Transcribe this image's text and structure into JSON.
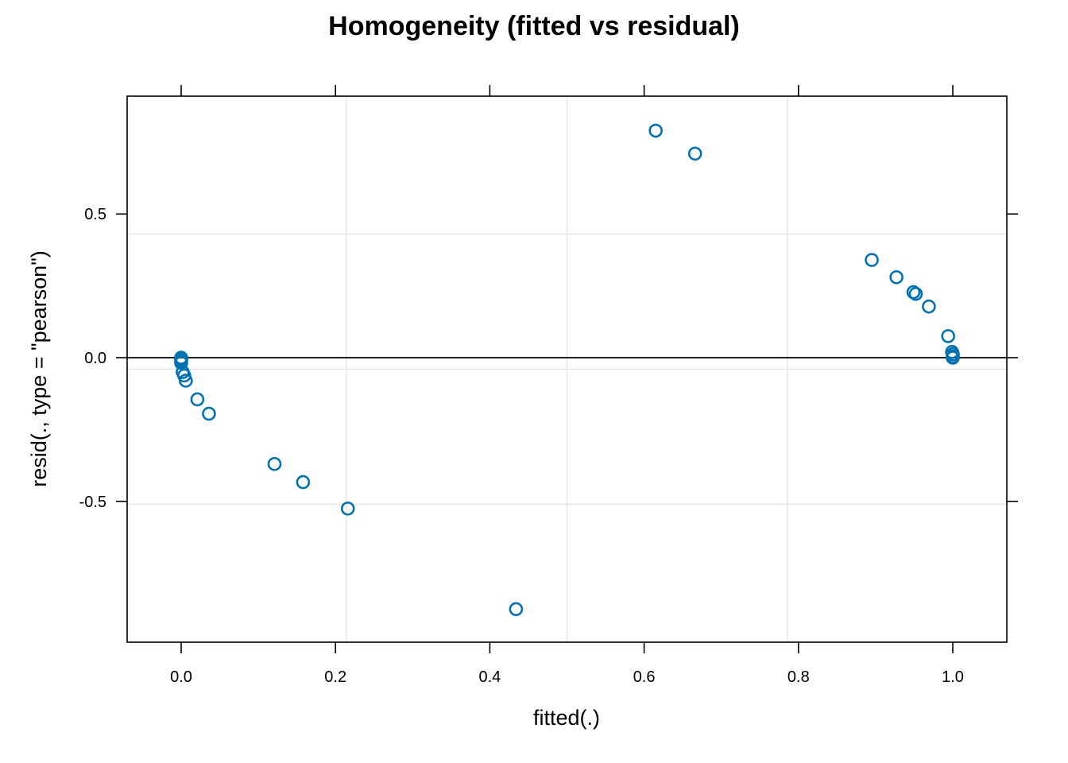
{
  "chart_data": {
    "type": "scatter",
    "title": "Homogeneity (fitted vs residual)",
    "xlabel": "fitted(.)",
    "ylabel": "resid(., type = \"pearson\")",
    "xlim": [
      -0.07,
      1.07
    ],
    "ylim": [
      -0.99,
      0.91
    ],
    "x_ticks": [
      {
        "value": 0.0,
        "label": "0.0"
      },
      {
        "value": 0.2,
        "label": "0.2"
      },
      {
        "value": 0.4,
        "label": "0.4"
      },
      {
        "value": 0.6,
        "label": "0.6"
      },
      {
        "value": 0.8,
        "label": "0.8"
      },
      {
        "value": 1.0,
        "label": "1.0"
      }
    ],
    "y_ticks": [
      {
        "value": 0.5,
        "label": "0.5"
      },
      {
        "value": 0.0,
        "label": "0.0"
      },
      {
        "value": -0.5,
        "label": "-0.5"
      }
    ],
    "grid": {
      "show": true,
      "x": [
        0.214,
        0.5,
        0.786
      ],
      "y": [
        0.43,
        -0.04,
        -0.51
      ],
      "color": "#e6e6e6"
    },
    "reference_line": {
      "y": 0.0,
      "color": "#000000"
    },
    "point_color": "#0072b2",
    "points": [
      {
        "x": 0.0,
        "y": 0.0
      },
      {
        "x": 0.0,
        "y": -0.005
      },
      {
        "x": 0.0,
        "y": -0.012
      },
      {
        "x": 0.0,
        "y": -0.018
      },
      {
        "x": 0.002,
        "y": -0.05
      },
      {
        "x": 0.004,
        "y": -0.062
      },
      {
        "x": 0.006,
        "y": -0.08
      },
      {
        "x": 0.021,
        "y": -0.145
      },
      {
        "x": 0.036,
        "y": -0.195
      },
      {
        "x": 0.121,
        "y": -0.37
      },
      {
        "x": 0.158,
        "y": -0.433
      },
      {
        "x": 0.216,
        "y": -0.525
      },
      {
        "x": 0.434,
        "y": -0.875
      },
      {
        "x": 0.615,
        "y": 0.79
      },
      {
        "x": 0.666,
        "y": 0.71
      },
      {
        "x": 0.895,
        "y": 0.34
      },
      {
        "x": 0.927,
        "y": 0.28
      },
      {
        "x": 0.949,
        "y": 0.228
      },
      {
        "x": 0.952,
        "y": 0.222
      },
      {
        "x": 0.969,
        "y": 0.178
      },
      {
        "x": 0.994,
        "y": 0.075
      },
      {
        "x": 0.999,
        "y": 0.02
      },
      {
        "x": 1.0,
        "y": 0.012
      },
      {
        "x": 1.0,
        "y": 0.004
      },
      {
        "x": 1.0,
        "y": 0.0
      }
    ]
  }
}
